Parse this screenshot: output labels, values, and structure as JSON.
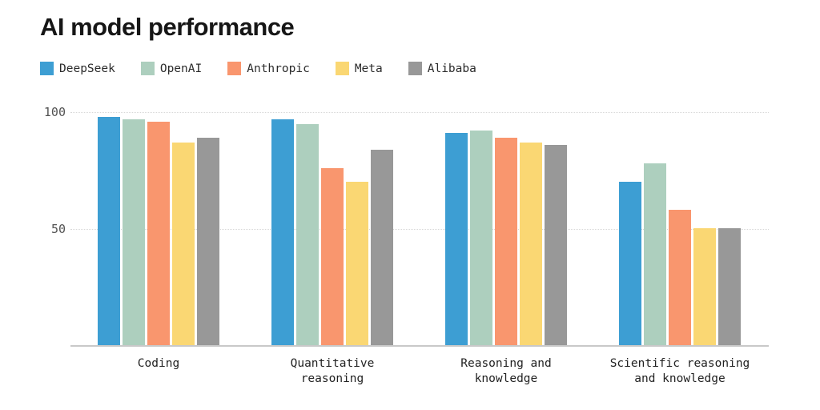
{
  "title": "AI model performance",
  "colors": {
    "deepseek": "#3d9ed3",
    "openai": "#adcfbe",
    "anthropic": "#f9966e",
    "meta": "#fad773",
    "alibaba": "#989898",
    "gridline": "#d8d8d8",
    "axis_line": "#c9c9c9"
  },
  "chart_data": {
    "type": "bar",
    "title": "AI model performance",
    "categories": [
      "Coding",
      "Quantitative\nreasoning",
      "Reasoning and\nknowledge",
      "Scientific reasoning\nand knowledge"
    ],
    "series": [
      {
        "name": "DeepSeek",
        "color": "#3d9ed3",
        "values": [
          98,
          97,
          91,
          70
        ]
      },
      {
        "name": "OpenAI",
        "color": "#adcfbe",
        "values": [
          97,
          95,
          92,
          78
        ]
      },
      {
        "name": "Anthropic",
        "color": "#f9966e",
        "values": [
          96,
          76,
          89,
          58
        ]
      },
      {
        "name": "Meta",
        "color": "#fad773",
        "values": [
          87,
          70,
          87,
          50
        ]
      },
      {
        "name": "Alibaba",
        "color": "#989898",
        "values": [
          89,
          84,
          86,
          50
        ]
      }
    ],
    "xlabel": "",
    "ylabel": "",
    "ylim": [
      0,
      100
    ],
    "yticks": [
      50,
      100
    ],
    "grid": "horizontal-dotted",
    "legend_position": "top-left"
  }
}
